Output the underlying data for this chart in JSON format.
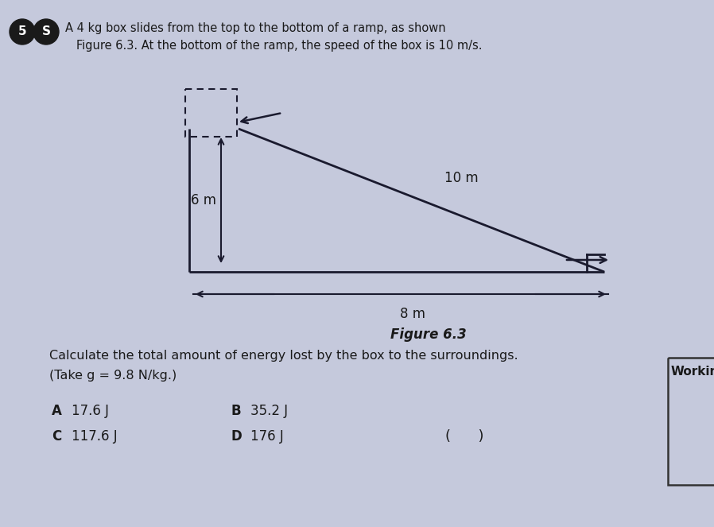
{
  "background_color": "#c5c9dc",
  "title_circle1": "5",
  "title_circle2": "S",
  "question_text_line1": "A 4 kg box slides from the top to the bottom of a ramp, as shown",
  "question_text_line2": "Figure 6.3. At the bottom of the ramp, the speed of the box is 10 m/s.",
  "ramp_label_slant": "10 m",
  "ramp_label_height": "6 m",
  "ramp_label_base": "8 m",
  "figure_caption": "Figure 6.3",
  "calculate_text": "Calculate the total amount of energy lost by the box to the surroundings.",
  "take_g_text": "(Take g = 9.8 N/kg.)",
  "working_label": "Working/",
  "answer_A_label": "A",
  "answer_A_val": "17.6 J",
  "answer_B_label": "B",
  "answer_B_val": "35.2 J",
  "answer_C_label": "C",
  "answer_C_val": "117.6 J",
  "answer_D_label": "D",
  "answer_D_val": "176 J",
  "bracket_text": "(      )",
  "line_color": "#1a1a2e",
  "text_color": "#1a1a1a",
  "circle_color": "#1a1a1a"
}
